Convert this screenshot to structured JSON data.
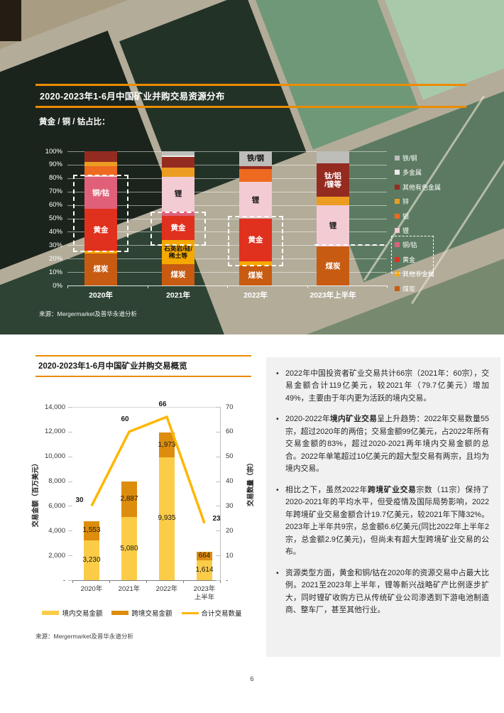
{
  "page_number": "6",
  "hero": {
    "source": "来源：Mergermarket及普华永道分析"
  },
  "overview": {
    "source": "来源：Mergermarket及普华永道分析"
  },
  "colors": {
    "accent_orange": "#EB8C00",
    "panel_gray": "#F1F1F1"
  },
  "chart_data": [
    {
      "id": "resource-distribution",
      "type": "bar",
      "subtype": "stacked-100-percent",
      "title": "2020-2023年1-6月中国矿业并购交易资源分布",
      "subtitle": "黄金 / 铜 / 钴占比：",
      "categories": [
        "2020年",
        "2021年",
        "2022年",
        "2023年上半年"
      ],
      "yticks": [
        "0%",
        "10%",
        "20%",
        "30%",
        "40%",
        "50%",
        "60%",
        "70%",
        "80%",
        "90%",
        "100%"
      ],
      "ylim": [
        0,
        100
      ],
      "legend_position": "right",
      "series": [
        {
          "name": "煤炭",
          "color": "#C75B12",
          "values": [
            24,
            16,
            15,
            29
          ]
        },
        {
          "name": "其他非金属",
          "color": "#F5A800",
          "values": [
            2,
            18,
            3,
            0
          ]
        },
        {
          "name": "黄金",
          "color": "#E0301E",
          "values": [
            31,
            18,
            32,
            0
          ]
        },
        {
          "name": "铜/钴",
          "color": "#E0607A",
          "values": [
            24,
            3,
            0,
            0
          ]
        },
        {
          "name": "锂",
          "color": "#F3CBD3",
          "values": [
            1,
            26,
            27,
            31
          ]
        },
        {
          "name": "钼",
          "color": "#ED6A20",
          "values": [
            7,
            0,
            10,
            0
          ]
        },
        {
          "name": "锌",
          "color": "#EC9D21",
          "values": [
            3,
            7,
            0,
            6
          ]
        },
        {
          "name": "其他有色金属",
          "color": "#942B21",
          "values": [
            8,
            8,
            2,
            25
          ]
        },
        {
          "name": "多金属",
          "color": "#ECECEA",
          "values": [
            0,
            1,
            0,
            0
          ]
        },
        {
          "name": "铁/钢",
          "color": "#BDBDBA",
          "values": [
            0,
            3,
            11,
            9
          ]
        }
      ],
      "segment_labels": [
        {
          "category": 0,
          "series": "煤炭",
          "text": "煤炭",
          "dark": false
        },
        {
          "category": 0,
          "series": "黄金",
          "text": "黄金",
          "dark": false
        },
        {
          "category": 0,
          "series": "铜/钴",
          "text": "铜/钴",
          "dark": false
        },
        {
          "category": 1,
          "series": "煤炭",
          "text": "煤炭",
          "dark": false
        },
        {
          "category": 1,
          "series": "其他非金属",
          "text": "石英岩/硅/\n稀土等",
          "dark": true,
          "small": true
        },
        {
          "category": 1,
          "series": "黄金",
          "text": "黄金",
          "dark": false
        },
        {
          "category": 1,
          "series": "锂",
          "text": "锂",
          "dark": true
        },
        {
          "category": 2,
          "series": "煤炭",
          "text": "煤炭",
          "dark": false
        },
        {
          "category": 2,
          "series": "黄金",
          "text": "黄金",
          "dark": false
        },
        {
          "category": 2,
          "series": "锂",
          "text": "锂",
          "dark": true
        },
        {
          "category": 2,
          "series": "铁/钢",
          "text": "铁/钢",
          "dark": true
        },
        {
          "category": 3,
          "series": "煤炭",
          "text": "煤炭",
          "dark": false
        },
        {
          "category": 3,
          "series": "锂",
          "text": "锂",
          "dark": true
        },
        {
          "category": 3,
          "series": "其他有色金属",
          "text": "钛/铝\n/镍等",
          "dark": false
        }
      ],
      "annotations": [
        {
          "type": "box",
          "category": 0,
          "from_pct": 27,
          "to_pct": 82.5
        },
        {
          "type": "box",
          "category": 1,
          "from_pct": 31.5,
          "to_pct": 55
        },
        {
          "type": "box",
          "category": 2,
          "from_pct": 16.5,
          "to_pct": 52
        },
        {
          "type": "hline",
          "category": 3,
          "at_pct": 30.5
        },
        {
          "type": "legend-box",
          "first": "铜/钴",
          "last": "黄金"
        }
      ]
    },
    {
      "id": "transaction-overview",
      "type": "bar+line",
      "title": "2020-2023年1-6月中国矿业并购交易概览",
      "categories": [
        "2020年",
        "2021年",
        "2022年",
        "2023年\n上半年"
      ],
      "ylabel_left": "交易金额（百万美元）",
      "ylabel_right": "交易数量（宗）",
      "yticks_left": [
        "-",
        "2,000",
        "4,000",
        "6,000",
        "8,000",
        "10,000",
        "12,000",
        "14,000"
      ],
      "yticks_right": [
        "-",
        "10",
        "20",
        "30",
        "40",
        "50",
        "60",
        "70"
      ],
      "ylim_left": [
        0,
        14000
      ],
      "ylim_right": [
        0,
        70
      ],
      "legend_position": "bottom",
      "series": [
        {
          "name": "境内交易金额",
          "type": "bar",
          "color": "#FBCC48",
          "values": [
            3230,
            5080,
            9935,
            1614
          ],
          "labels": [
            "3,230",
            "5,080",
            "9,935",
            "1,614"
          ]
        },
        {
          "name": "跨境交易金额",
          "type": "bar",
          "color": "#DD8D0E",
          "values": [
            1553,
            2887,
            1973,
            664
          ],
          "labels": [
            "1,553",
            "2,887",
            "1,973",
            "664"
          ]
        },
        {
          "name": "合计交易数量",
          "type": "line",
          "axis": "right",
          "color": "#FFB600",
          "values": [
            30,
            60,
            66,
            23
          ],
          "labels": [
            "30",
            "60",
            "66",
            "23"
          ]
        }
      ]
    }
  ],
  "commentary": {
    "bullet_char": "•",
    "bullets": [
      {
        "runs": [
          {
            "text": "2022年中国投资者矿业交易共计66宗（2021年：60宗），交易金额合计119亿美元，较2021年（79.7亿美元）增加49%，主要由于年内更为活跃的境内交易。"
          }
        ]
      },
      {
        "runs": [
          {
            "text": "2020-2022年"
          },
          {
            "text": "境内矿业交易",
            "bold": true
          },
          {
            "text": "呈上升趋势：2022年交易数量55宗，超过2020年的两倍；交易金额99亿美元，占2022年所有交易金额的83%，超过2020-2021两年境内交易金额的总合。2022年单笔超过10亿美元的超大型交易有两宗，且均为境内交易。"
          }
        ]
      },
      {
        "runs": [
          {
            "text": "相比之下，虽然2022年"
          },
          {
            "text": "跨境矿业交易",
            "bold": true
          },
          {
            "text": "宗数（11宗）保持了2020-2021年的平均水平，但受疫情及国际局势影响，2022年跨境矿业交易金额合计19.7亿美元，较2021年下降32%。2023年上半年共9宗，总金额6.6亿美元(同比2022年上半年2宗，总金额2.9亿美元)，但尚未有超大型跨境矿业交易的公布。"
          }
        ]
      },
      {
        "runs": [
          {
            "text": "资源类型方面，黄金和铜/钴在2020年的资源交易中占最大比例。2021至2023年上半年，锂等新兴战略矿产比例逐步扩大，同时锂矿收购方已从传统矿业公司渗透到下游电池制造商、整车厂，甚至其他行业。"
          }
        ]
      }
    ]
  }
}
